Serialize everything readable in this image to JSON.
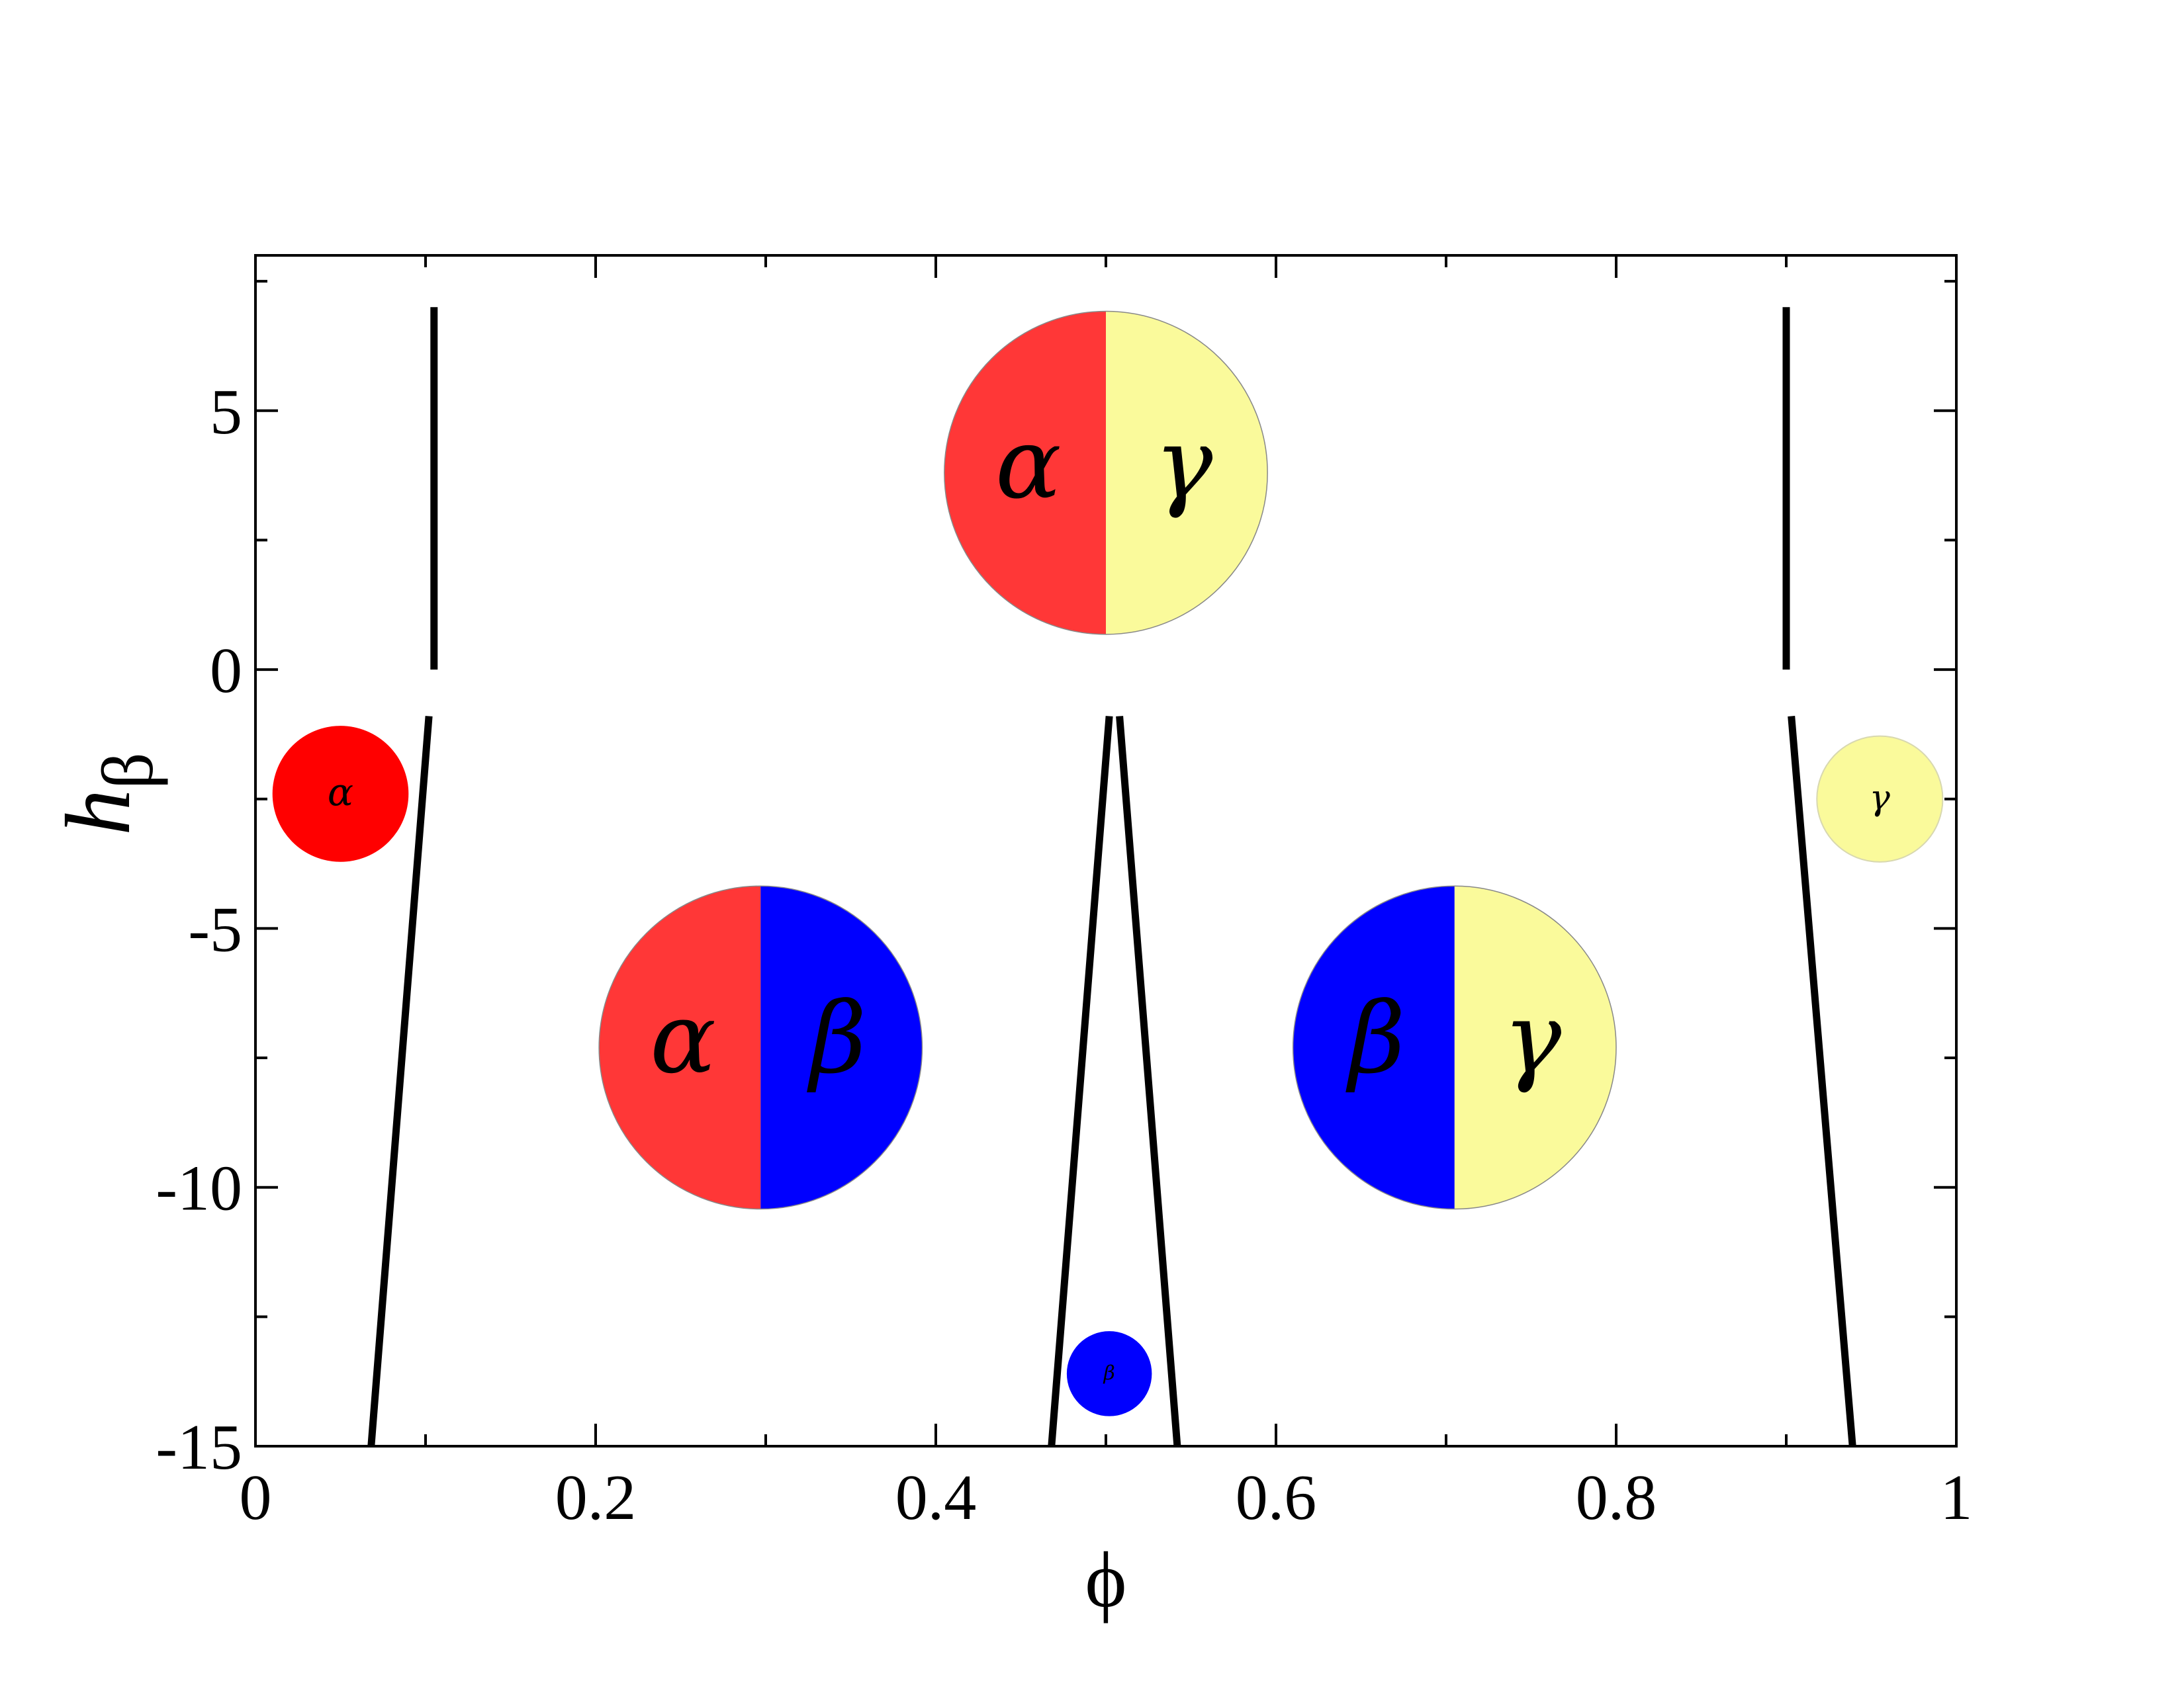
{
  "chart_data": {
    "type": "line",
    "xlabel": "ϕ",
    "ylabel_main": "h",
    "ylabel_sub": "β",
    "xlim": [
      0,
      1
    ],
    "ylim": [
      -15,
      8
    ],
    "x_ticks": [
      0,
      0.2,
      0.4,
      0.6,
      0.8,
      1
    ],
    "x_tick_labels": [
      "0",
      "0.2",
      "0.4",
      "0.6",
      "0.8",
      "1"
    ],
    "x_minor_ticks": [
      0.1,
      0.3,
      0.5,
      0.7,
      0.9
    ],
    "y_ticks": [
      5,
      0,
      -5,
      -10,
      -15
    ],
    "y_tick_labels": [
      "5",
      "0",
      "-5",
      "-10",
      "-15"
    ],
    "y_minor_ticks": [
      7.5,
      2.5,
      -2.5,
      -7.5,
      -12.5
    ],
    "grid": false,
    "series": [
      {
        "points": [
          [
            0.105,
            7.0
          ],
          [
            0.105,
            0.0
          ]
        ]
      },
      {
        "points": [
          [
            0.102,
            -0.9
          ],
          [
            0.068,
            -15.0
          ]
        ]
      },
      {
        "points": [
          [
            0.9,
            7.0
          ],
          [
            0.9,
            0.0
          ]
        ]
      },
      {
        "points": [
          [
            0.903,
            -0.9
          ],
          [
            0.939,
            -15.0
          ]
        ]
      },
      {
        "points": [
          [
            0.468,
            -15.0
          ],
          [
            0.502,
            -0.9
          ]
        ]
      },
      {
        "points": [
          [
            0.508,
            -0.9
          ],
          [
            0.542,
            -15.0
          ]
        ]
      }
    ],
    "phase_markers": [
      {
        "cx": 0.05,
        "cy": -2.4,
        "r": 0.04,
        "halves": [
          "#ff0000"
        ],
        "labels": [
          "α"
        ],
        "font": 58
      },
      {
        "cx": 0.502,
        "cy": -13.6,
        "r": 0.025,
        "halves": [
          "#0000ff"
        ],
        "labels": [
          "β"
        ],
        "font": 30
      },
      {
        "cx": 0.955,
        "cy": -2.5,
        "r": 0.037,
        "halves": [
          "#fafa9b"
        ],
        "labels": [
          "γ"
        ],
        "font": 52
      },
      {
        "cx": 0.5,
        "cy": 3.8,
        "r": 0.095,
        "halves": [
          "#ff3737",
          "#fafa9b"
        ],
        "labels": [
          "α",
          "γ"
        ],
        "font": 148
      },
      {
        "cx": 0.297,
        "cy": -7.3,
        "r": 0.095,
        "halves": [
          "#ff3737",
          "#0000ff"
        ],
        "labels": [
          "α",
          "β"
        ],
        "font": 148
      },
      {
        "cx": 0.705,
        "cy": -7.3,
        "r": 0.095,
        "halves": [
          "#0000ff",
          "#fafa9b"
        ],
        "labels": [
          "β",
          "γ"
        ],
        "font": 148
      }
    ]
  }
}
